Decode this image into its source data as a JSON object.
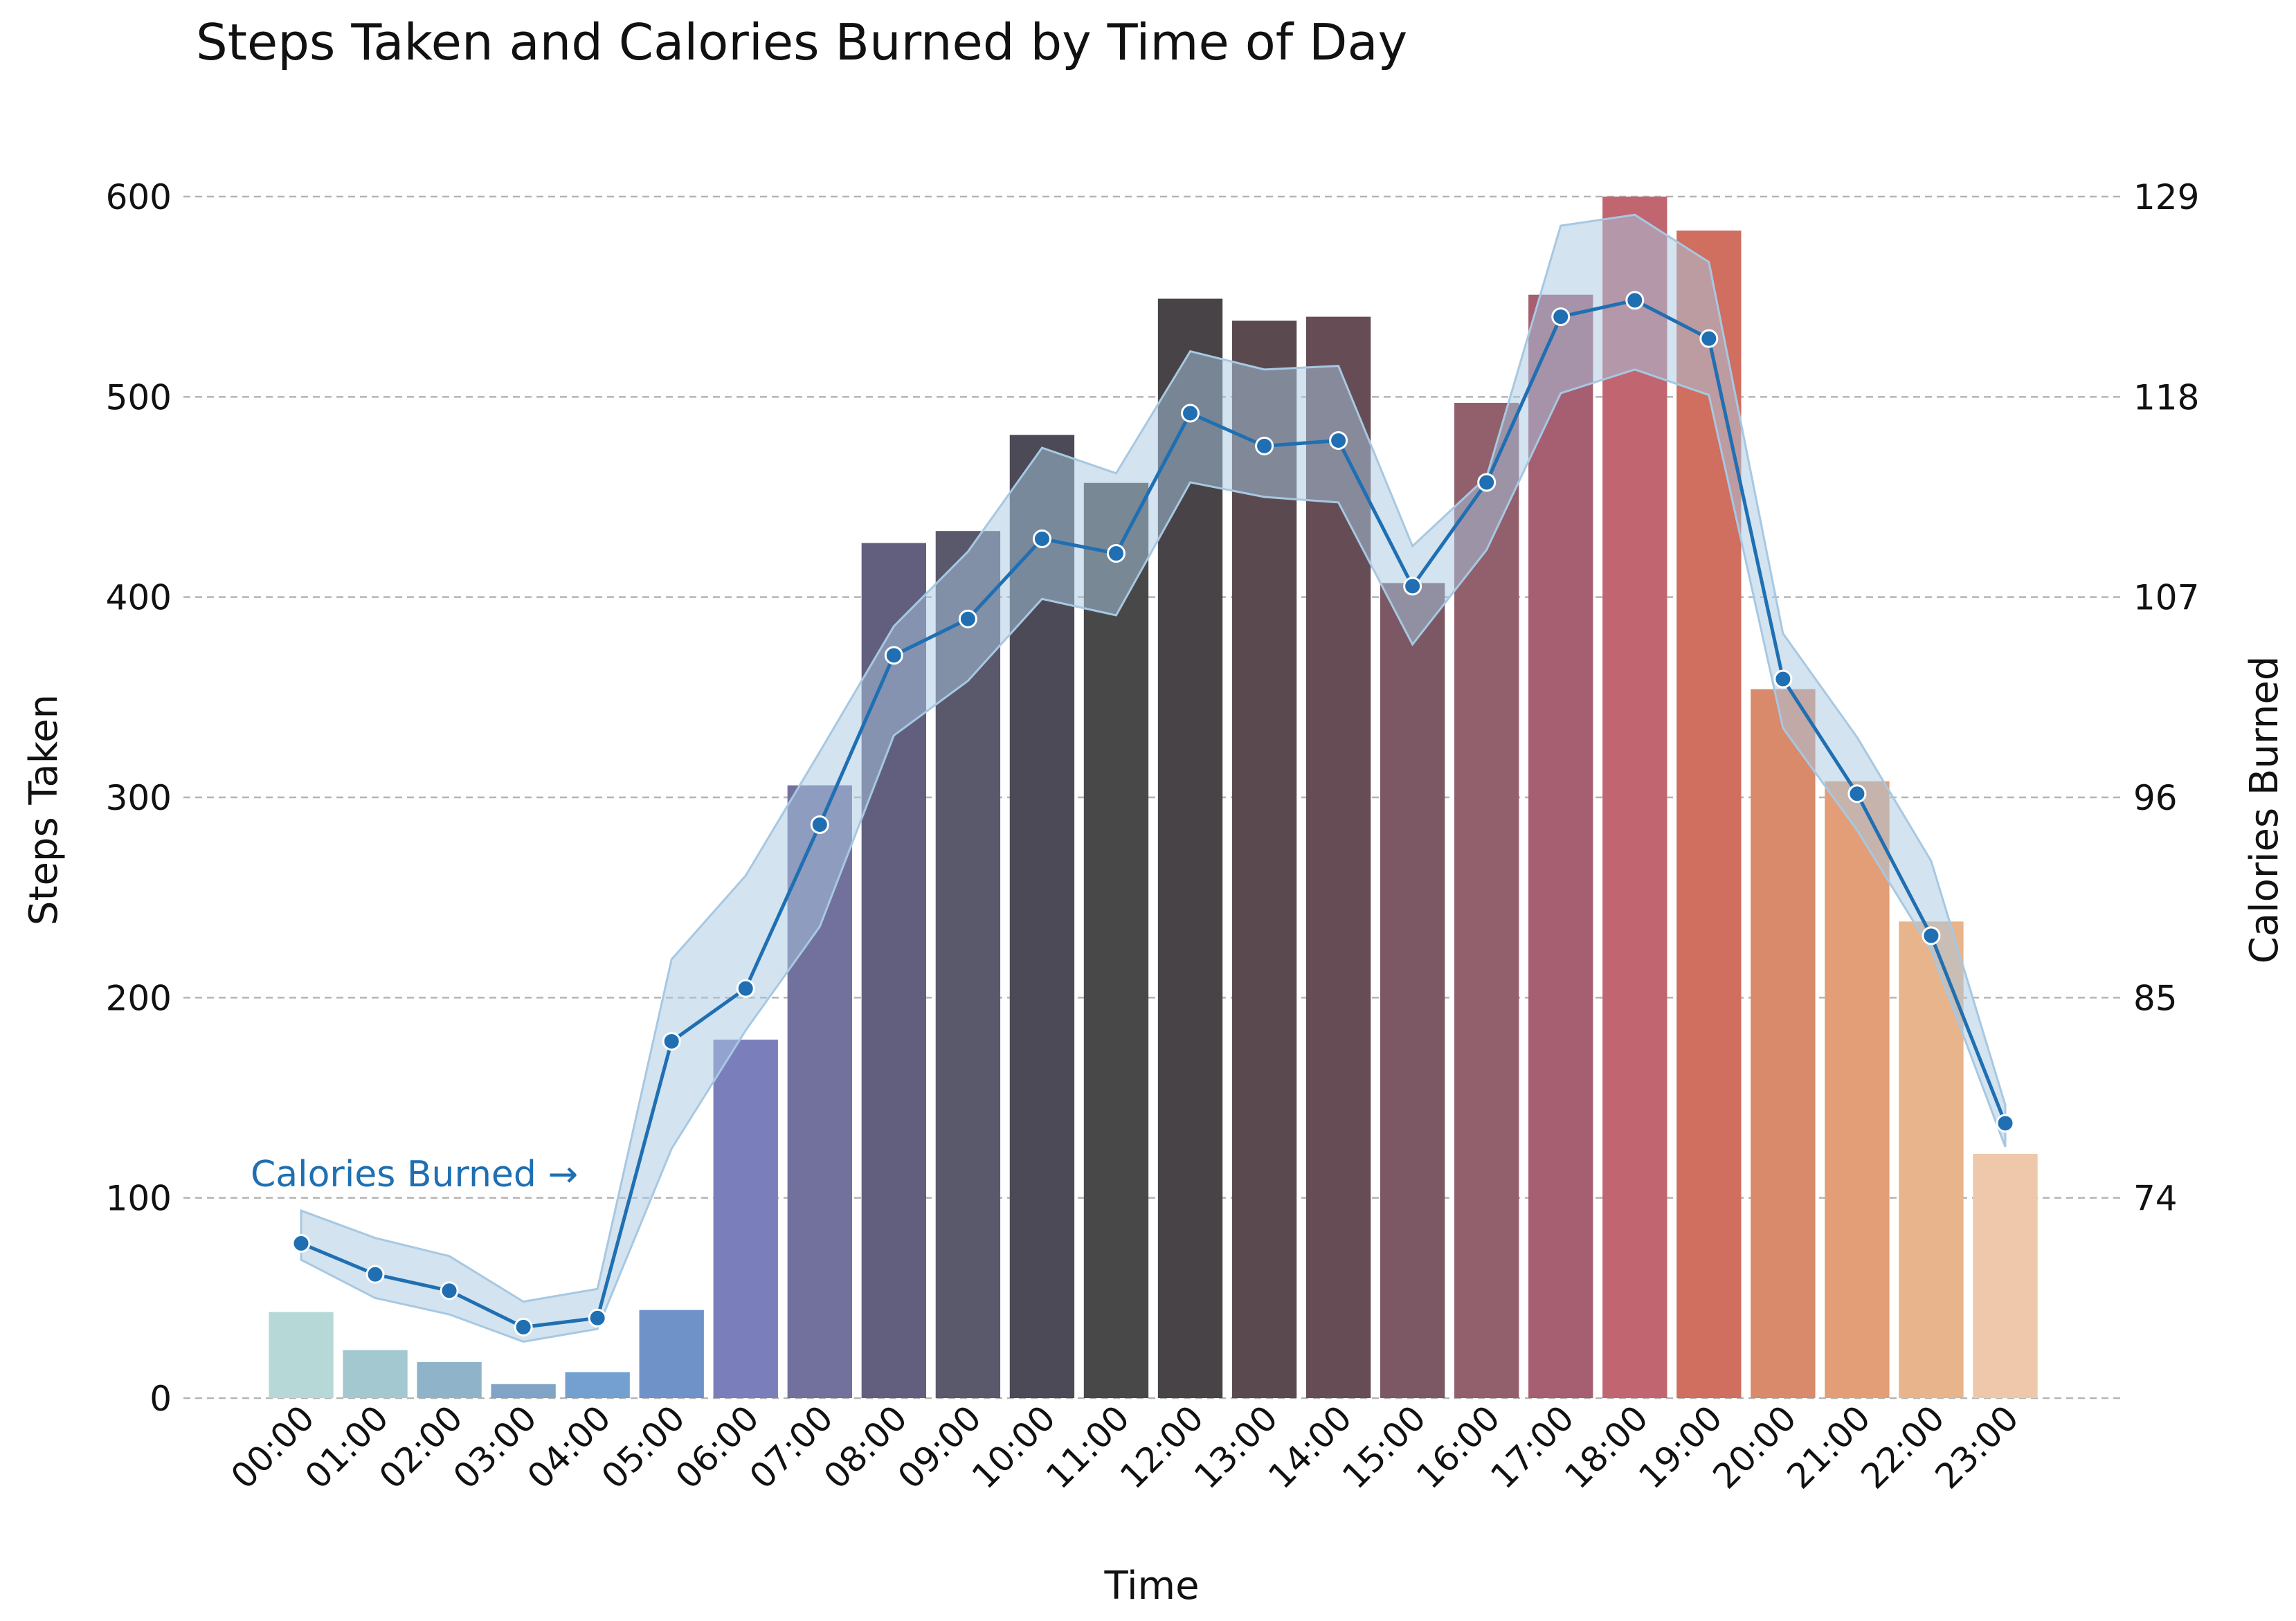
{
  "chart_data": {
    "type": "bar+line",
    "title": "Steps Taken and Calories Burned by Time of Day",
    "xlabel": "Time",
    "ylabel_left": "Steps Taken",
    "ylabel_right": "Calories Burned",
    "categories": [
      "00:00",
      "01:00",
      "02:00",
      "03:00",
      "04:00",
      "05:00",
      "06:00",
      "07:00",
      "08:00",
      "09:00",
      "10:00",
      "11:00",
      "12:00",
      "13:00",
      "14:00",
      "15:00",
      "16:00",
      "17:00",
      "18:00",
      "19:00",
      "20:00",
      "21:00",
      "22:00",
      "23:00"
    ],
    "left_axis": {
      "ylim": [
        0,
        600
      ],
      "ticks": [
        0,
        100,
        200,
        300,
        400,
        500,
        600
      ]
    },
    "right_axis": {
      "ylim": [
        63.0,
        129.0
      ],
      "ticks": [
        74,
        85,
        96,
        107,
        118,
        129
      ]
    },
    "grid": true,
    "series": [
      {
        "name": "",
        "kind": "bar",
        "axis": "left",
        "values": [
          43,
          24,
          18,
          7,
          13,
          44,
          179,
          306,
          427,
          433,
          481,
          457,
          549,
          538,
          540,
          407,
          497,
          551,
          600,
          583,
          354,
          308,
          238,
          122
        ],
        "colors": [
          "#b6d8d6",
          "#a4c8d0",
          "#8fb4ca",
          "#7fa4c6",
          "#73a0d0",
          "#6f92c9",
          "#7a7fbb",
          "#72709c",
          "#625f7e",
          "#5a586b",
          "#4b4a56",
          "#484849",
          "#474346",
          "#5a4a50",
          "#664d55",
          "#7b5863",
          "#925f6d",
          "#a55f70",
          "#c16670",
          "#d06e60",
          "#d88a6a",
          "#e39e77",
          "#e8b48b",
          "#efc8ab"
        ]
      },
      {
        "name": "Calories Burned",
        "kind": "line",
        "axis": "right",
        "color": "#1f6fb2",
        "band_color": "#a7c8e2",
        "values": [
          71.5,
          69.8,
          68.9,
          66.9,
          67.4,
          82.6,
          85.5,
          94.5,
          103.8,
          105.8,
          110.2,
          109.4,
          117.1,
          115.3,
          115.6,
          107.6,
          113.3,
          122.4,
          123.3,
          121.2,
          102.5,
          96.2,
          88.4,
          78.1
        ],
        "band_lower": [
          70.6,
          68.5,
          67.6,
          66.1,
          66.8,
          76.7,
          83.2,
          88.9,
          99.4,
          102.4,
          106.9,
          106.0,
          113.3,
          112.5,
          112.2,
          104.4,
          109.6,
          118.2,
          119.5,
          118.1,
          99.8,
          94.2,
          87.6,
          76.8
        ],
        "band_upper": [
          73.3,
          71.8,
          70.8,
          68.3,
          69.0,
          87.1,
          91.7,
          98.5,
          105.4,
          109.5,
          115.2,
          113.8,
          120.5,
          119.5,
          119.7,
          109.8,
          113.6,
          127.4,
          128.0,
          125.4,
          105.0,
          99.3,
          92.5,
          79.1
        ]
      }
    ],
    "annotations": [
      {
        "text": "Calories Burned →",
        "color": "#1f6fb2"
      }
    ]
  }
}
